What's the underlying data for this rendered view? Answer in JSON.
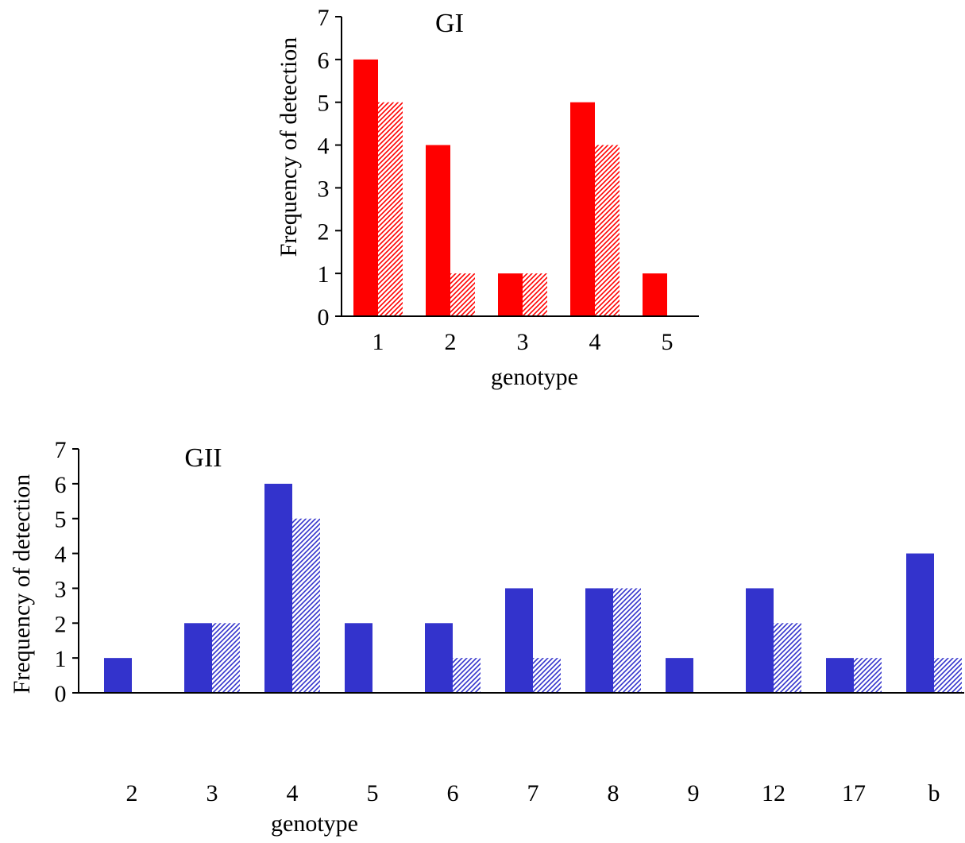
{
  "colors": {
    "gi_bar": "#ff0000",
    "gii_bar": "#3333cc",
    "axis": "#000000",
    "background": "#ffffff"
  },
  "chart_data": [
    {
      "type": "bar",
      "title": "GI",
      "xlabel": "genotype",
      "ylabel": "Frequency of detection",
      "ylim": [
        0,
        7
      ],
      "yticks": [
        "0",
        "1",
        "2",
        "3",
        "4",
        "5",
        "6",
        "7"
      ],
      "categories": [
        "1",
        "2",
        "3",
        "4",
        "5"
      ],
      "grid": false,
      "legend": "none",
      "series": [
        {
          "style": "solid",
          "color": "#ff0000",
          "values": [
            6,
            4,
            1,
            5,
            1
          ]
        },
        {
          "style": "hatched",
          "color": "#ff0000",
          "values": [
            5,
            1,
            1,
            4,
            0
          ]
        }
      ]
    },
    {
      "type": "bar",
      "title": "GII",
      "xlabel": "genotype",
      "ylabel": "Frequency of detection",
      "ylim": [
        0,
        7
      ],
      "yticks": [
        "0",
        "1",
        "2",
        "3",
        "4",
        "5",
        "6",
        "7"
      ],
      "categories": [
        "2",
        "3",
        "4",
        "5",
        "6",
        "7",
        "8",
        "9",
        "12",
        "17",
        "b"
      ],
      "grid": false,
      "legend": "none",
      "series": [
        {
          "style": "solid",
          "color": "#3333cc",
          "values": [
            1,
            2,
            6,
            2,
            2,
            3,
            3,
            1,
            3,
            1,
            4
          ]
        },
        {
          "style": "hatched",
          "color": "#3333cc",
          "values": [
            0,
            2,
            5,
            0,
            1,
            1,
            3,
            0,
            2,
            1,
            1
          ]
        }
      ]
    }
  ]
}
